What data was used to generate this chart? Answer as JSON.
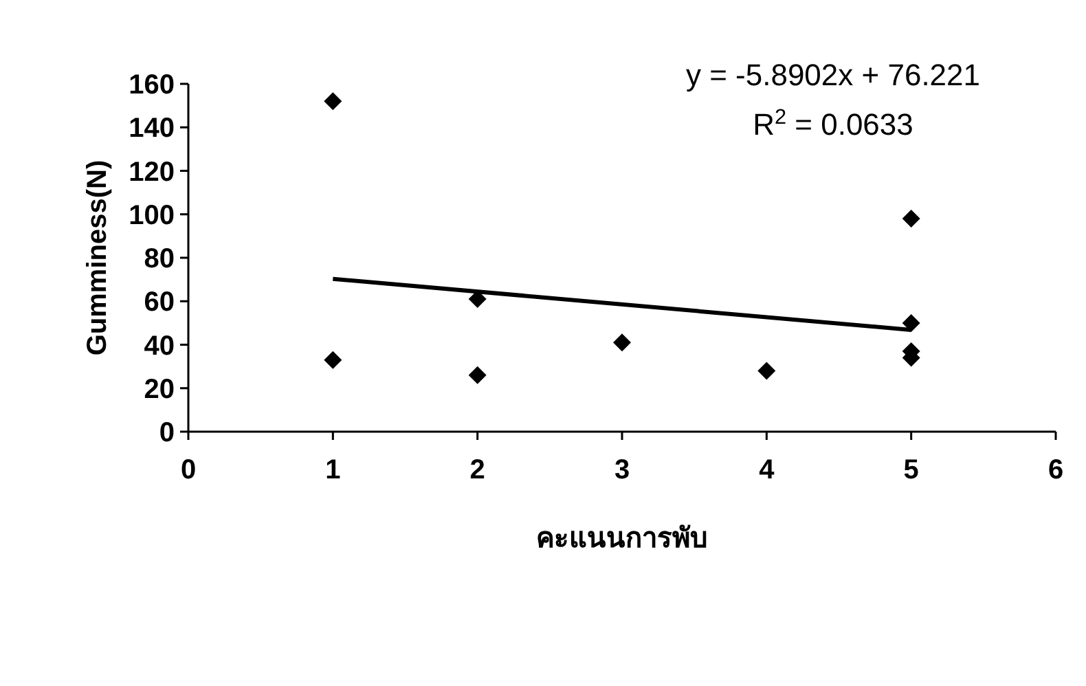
{
  "chart_data": {
    "type": "scatter",
    "xlabel": "คะแนนการพับ",
    "ylabel": "Gumminess(N)",
    "xlim": [
      0,
      6
    ],
    "ylim": [
      0,
      160
    ],
    "xticks": [
      0,
      1,
      2,
      3,
      4,
      5,
      6
    ],
    "yticks": [
      0,
      20,
      40,
      60,
      80,
      100,
      120,
      140,
      160
    ],
    "grid": false,
    "series": [
      {
        "color": "#000000",
        "marker": "diamond",
        "x": [
          1,
          1,
          2,
          2,
          3,
          4,
          5,
          5,
          5,
          5
        ],
        "values": [
          152,
          33,
          61,
          26,
          41,
          28,
          98,
          50,
          37,
          34
        ]
      },
      {
        "type": "line",
        "color": "#000000",
        "x": [
          1,
          5
        ],
        "values": [
          70.3,
          46.8
        ]
      }
    ],
    "annotations": [
      "y = -5.8902x + 76.221",
      "R$^{2}$ = 0.0633"
    ]
  }
}
